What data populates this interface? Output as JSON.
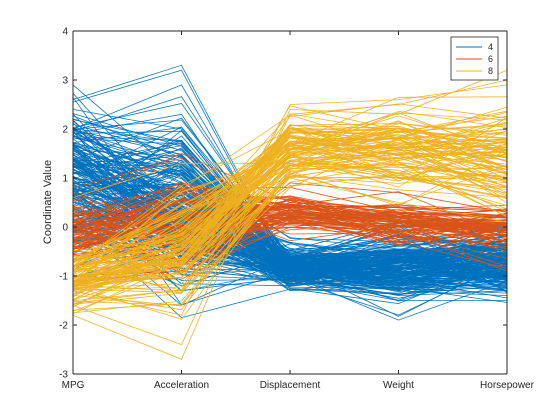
{
  "chart_data": {
    "type": "line",
    "subtype": "parallel-coordinates",
    "title": "",
    "xlabel": "",
    "ylabel": "Coordinate Value",
    "categories": [
      "MPG",
      "Acceleration",
      "Displacement",
      "Weight",
      "Horsepower"
    ],
    "ylim": [
      -3,
      4
    ],
    "yticks": [
      "-3",
      "-2",
      "-1",
      "0",
      "1",
      "2",
      "3",
      "4"
    ],
    "grid": false,
    "legend_position": "top-right",
    "colors": {
      "4": "#0072BD",
      "6": "#D95319",
      "8": "#EDB120"
    },
    "series": [
      {
        "name": "4",
        "center": [
          0.95,
          0.35,
          -0.85,
          -0.85,
          -0.75
        ],
        "spread": [
          0.8,
          0.85,
          0.22,
          0.38,
          0.38
        ],
        "lines": [
          [
            2.6,
            3.3,
            -0.9,
            -1.3,
            -1.4
          ],
          [
            2.55,
            3.2,
            -0.95,
            -1.25,
            -1.35
          ],
          [
            2.0,
            2.9,
            -0.9,
            -1.1,
            -1.2
          ],
          [
            1.9,
            2.3,
            -1.0,
            -1.4,
            -1.3
          ],
          [
            2.9,
            1.0,
            -1.1,
            -1.5,
            -1.5
          ],
          [
            2.4,
            2.0,
            -0.9,
            -1.2,
            -1.1
          ],
          [
            0.3,
            -1.6,
            -0.6,
            -0.3,
            -0.3
          ],
          [
            -0.3,
            -1.2,
            -0.5,
            -0.4,
            -0.2
          ]
        ]
      },
      {
        "name": "6",
        "center": [
          -0.15,
          0.1,
          0.3,
          0.1,
          -0.05
        ],
        "spread": [
          0.45,
          0.55,
          0.18,
          0.22,
          0.3
        ],
        "lines": [
          [
            0.8,
            1.4,
            0.2,
            0.3,
            0.0
          ],
          [
            0.5,
            1.5,
            0.5,
            0.3,
            0.2
          ],
          [
            -1.2,
            -0.8,
            0.9,
            0.7,
            0.3
          ],
          [
            -1.0,
            -0.9,
            0.2,
            0.2,
            -0.3
          ]
        ]
      },
      {
        "name": "8",
        "center": [
          -1.05,
          -0.55,
          1.55,
          1.5,
          1.35
        ],
        "spread": [
          0.3,
          0.65,
          0.4,
          0.42,
          0.65
        ],
        "lines": [
          [
            -1.8,
            -2.7,
            2.4,
            2.3,
            3.2
          ],
          [
            -1.6,
            -2.4,
            2.3,
            2.5,
            3.0
          ],
          [
            -1.3,
            -1.8,
            2.5,
            2.6,
            2.9
          ],
          [
            -0.6,
            0.3,
            1.0,
            0.5,
            0.1
          ],
          [
            0.6,
            1.3,
            1.3,
            1.0,
            0.8
          ]
        ]
      }
    ]
  }
}
